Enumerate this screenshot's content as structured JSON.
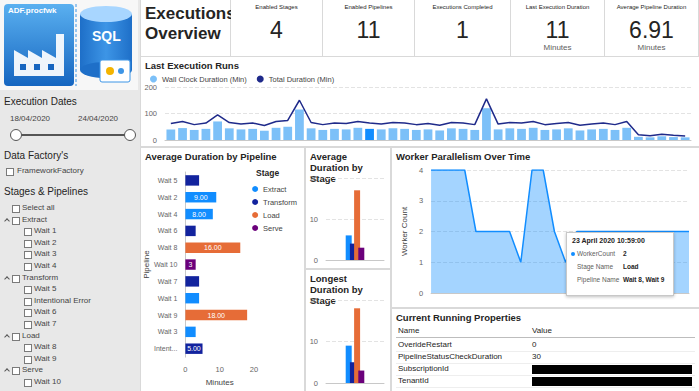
{
  "header": {
    "title": "Executions Overview",
    "logo_texts": [
      "ADF.procfwk",
      "SQL"
    ]
  },
  "kpis": [
    {
      "label": "Enabled Stages",
      "value": 4
    },
    {
      "label": "Enabled Pipelines",
      "value": 11
    },
    {
      "label": "Executions Completed",
      "value": 1
    },
    {
      "label": "Last Execution Duration",
      "value": 11,
      "unit": "Minutes"
    },
    {
      "label": "Average Pipeline Duration",
      "value": 6.91,
      "unit": "Minutes"
    }
  ],
  "filters": {
    "dates": {
      "title": "Execution Dates",
      "start": "18/04/2020",
      "end": "24/04/2020"
    },
    "factories": {
      "title": "Data Factory's",
      "items": [
        "FrameworkFactory"
      ]
    },
    "stages": {
      "title": "Stages & Pipelines",
      "select_all": "Select all",
      "groups": [
        {
          "name": "Extract",
          "items": [
            "Wait 1",
            "Wait 2",
            "Wait 3",
            "Wait 4"
          ]
        },
        {
          "name": "Transform",
          "items": [
            "Wait 5",
            "Intentional Error",
            "Wait 6",
            "Wait 7"
          ]
        },
        {
          "name": "Load",
          "items": [
            "Wait 8",
            "Wait 9"
          ]
        },
        {
          "name": "Serve",
          "items": [
            "Wait 10"
          ]
        }
      ]
    }
  },
  "chart_data": [
    {
      "type": "bar",
      "title": "Last Execution Runs",
      "categories": [
        null,
        null,
        null,
        null,
        null,
        null,
        null,
        null,
        null,
        null,
        null,
        null,
        null,
        null,
        null,
        null,
        null,
        null,
        null,
        null,
        null,
        null,
        null,
        null,
        null,
        null,
        null,
        null,
        null,
        null,
        null,
        null,
        null,
        null,
        null,
        null,
        null,
        null,
        null,
        null,
        null,
        null,
        null,
        null,
        null
      ],
      "series": [
        {
          "name": "Wall Clock Duration (Min)",
          "type": "bar",
          "color": "#7cc0f8",
          "colors": [
            "#7cc0f8",
            "#7cc0f8",
            "#7cc0f8",
            "#7cc0f8",
            "#7cc0f8",
            "#7cc0f8",
            "#7cc0f8",
            "#7cc0f8",
            "#7cc0f8",
            "#7cc0f8",
            "#7cc0f8",
            "#7cc0f8",
            "#7cc0f8",
            "#7cc0f8",
            "#7cc0f8",
            "#7cc0f8",
            "#7cc0f8",
            "#118dff",
            "#7cc0f8",
            "#7cc0f8",
            "#7cc0f8",
            "#7cc0f8",
            "#7cc0f8",
            "#7cc0f8",
            "#7cc0f8",
            "#7cc0f8",
            "#7cc0f8",
            "#7cc0f8",
            "#7cc0f8",
            "#7cc0f8",
            "#7cc0f8",
            "#7cc0f8",
            "#7cc0f8",
            "#7cc0f8",
            "#7cc0f8",
            "#7cc0f8",
            "#7cc0f8",
            "#7cc0f8",
            "#7cc0f8",
            "#7cc0f8",
            "#7cc0f8",
            "#7cc0f8",
            "#7cc0f8",
            "#7cc0f8",
            "#7cc0f8"
          ],
          "values": [
            40,
            45,
            38,
            42,
            70,
            44,
            40,
            42,
            35,
            46,
            50,
            115,
            44,
            38,
            42,
            40,
            46,
            42,
            40,
            44,
            42,
            38,
            40,
            36,
            44,
            42,
            38,
            120,
            40,
            44,
            42,
            46,
            38,
            40,
            44,
            36,
            40,
            42,
            38,
            46,
            12,
            10,
            14,
            11,
            10
          ]
        },
        {
          "name": "Total Duration (Min)",
          "type": "line",
          "color": "#1f2a8a",
          "marker": "none",
          "values": [
            62,
            70,
            58,
            64,
            95,
            66,
            60,
            64,
            55,
            70,
            74,
            150,
            66,
            58,
            64,
            62,
            70,
            64,
            60,
            66,
            64,
            58,
            62,
            56,
            66,
            64,
            58,
            155,
            60,
            66,
            64,
            70,
            58,
            62,
            66,
            56,
            60,
            64,
            58,
            70,
            20,
            16,
            22,
            18,
            15
          ]
        }
      ],
      "ylim": [
        0,
        200
      ],
      "yticks": [
        0,
        100,
        200
      ],
      "grid": true,
      "legend": "top-left",
      "tick_labels": "y"
    },
    {
      "type": "bar",
      "orientation": "horizontal",
      "title": "Average Duration by Pipeline",
      "categories": [
        "Wait 5",
        "Wait 2",
        "Wait 4",
        "Wait 6",
        "Wait 8",
        "Wait 10",
        "Wait 7",
        "Wait 1",
        "Wait 9",
        "Wait 3",
        "Intent..."
      ],
      "series": [
        {
          "name": "Extract",
          "color": "#118dff",
          "values": [
            null,
            9,
            8,
            null,
            null,
            null,
            null,
            4,
            null,
            3,
            null
          ],
          "value_labels": [
            null,
            "9.00",
            "8.00",
            null,
            null,
            null,
            null,
            null,
            null,
            null,
            null
          ]
        },
        {
          "name": "Transform",
          "color": "#12239e",
          "values": [
            4,
            null,
            null,
            3,
            null,
            null,
            4,
            null,
            null,
            null,
            5
          ],
          "value_labels": [
            null,
            null,
            null,
            null,
            null,
            null,
            null,
            null,
            null,
            null,
            "5.00"
          ]
        },
        {
          "name": "Load",
          "color": "#e66c37",
          "values": [
            null,
            null,
            null,
            null,
            16,
            null,
            null,
            null,
            18,
            null,
            null
          ],
          "value_labels": [
            null,
            null,
            null,
            null,
            "16.00",
            null,
            null,
            null,
            "18.00",
            null,
            null
          ]
        },
        {
          "name": "Serve",
          "color": "#6b007b",
          "values": [
            null,
            null,
            null,
            null,
            null,
            3,
            null,
            null,
            null,
            null,
            null
          ]
        }
      ],
      "stacked": true,
      "data_labels": true,
      "legend": "right",
      "legend_title": "Stage",
      "x_label": "Minutes",
      "y_label": "Pipeline",
      "xlim": [
        0,
        20
      ],
      "xticks": [
        0,
        10,
        20
      ]
    },
    {
      "type": "bar",
      "title": "Average Duration by Stage",
      "categories": [
        null
      ],
      "series": [
        {
          "color": "#118dff",
          "values": [
            6
          ]
        },
        {
          "color": "#12239e",
          "values": [
            4
          ]
        },
        {
          "color": "#e66c37",
          "values": [
            17
          ]
        },
        {
          "color": "#6b007b",
          "values": [
            3
          ]
        }
      ],
      "ylim": [
        0,
        20
      ],
      "yticks": [
        0,
        10,
        20
      ],
      "grid": true,
      "tick_labels": "y"
    },
    {
      "type": "bar",
      "title": "Longest Duration by Stage",
      "categories": [
        null
      ],
      "series": [
        {
          "color": "#118dff",
          "values": [
            9
          ]
        },
        {
          "color": "#12239e",
          "values": [
            5
          ]
        },
        {
          "color": "#e66c37",
          "values": [
            18
          ]
        },
        {
          "color": "#6b007b",
          "values": [
            3
          ]
        }
      ],
      "ylim": [
        0,
        20
      ],
      "yticks": [
        0,
        10,
        20
      ],
      "grid": true,
      "tick_labels": "y"
    },
    {
      "type": "area",
      "title": "Worker Parallelism Over Time",
      "categories": [
        null,
        null,
        null,
        null,
        null,
        null,
        null,
        null,
        null,
        null,
        null,
        null,
        null,
        null,
        null,
        null,
        null,
        null,
        null,
        null,
        null,
        null,
        null,
        null
      ],
      "series": [
        {
          "color": "#118dff",
          "marker": "none",
          "values": [
            4,
            4,
            4,
            4,
            2,
            2,
            2,
            2,
            1,
            4,
            4,
            2,
            1,
            2,
            2,
            2,
            2,
            2,
            2,
            2,
            2,
            2,
            2,
            2
          ]
        }
      ],
      "y_label": "Worker Count",
      "ylim": [
        0,
        4
      ],
      "yticks": [
        0,
        1,
        2,
        3,
        4
      ],
      "grid": true,
      "tick_labels": "y",
      "annotation": {
        "title": "23 April 2020 10:59:00",
        "rows": [
          [
            "WorkerCount",
            2
          ],
          [
            "Stage Name",
            "Load"
          ],
          [
            "Pipeline Name",
            "Wait 8, Wait 9"
          ]
        ]
      }
    }
  ],
  "table": {
    "title": "Current Running Properties",
    "columns": [
      "Name",
      "Value"
    ],
    "rows": [
      [
        "OverideRestart",
        0
      ],
      [
        "PipelineStatusCheckDuration",
        30
      ],
      [
        "SubscriptionId",
        null
      ],
      [
        "TenantId",
        null
      ]
    ]
  }
}
